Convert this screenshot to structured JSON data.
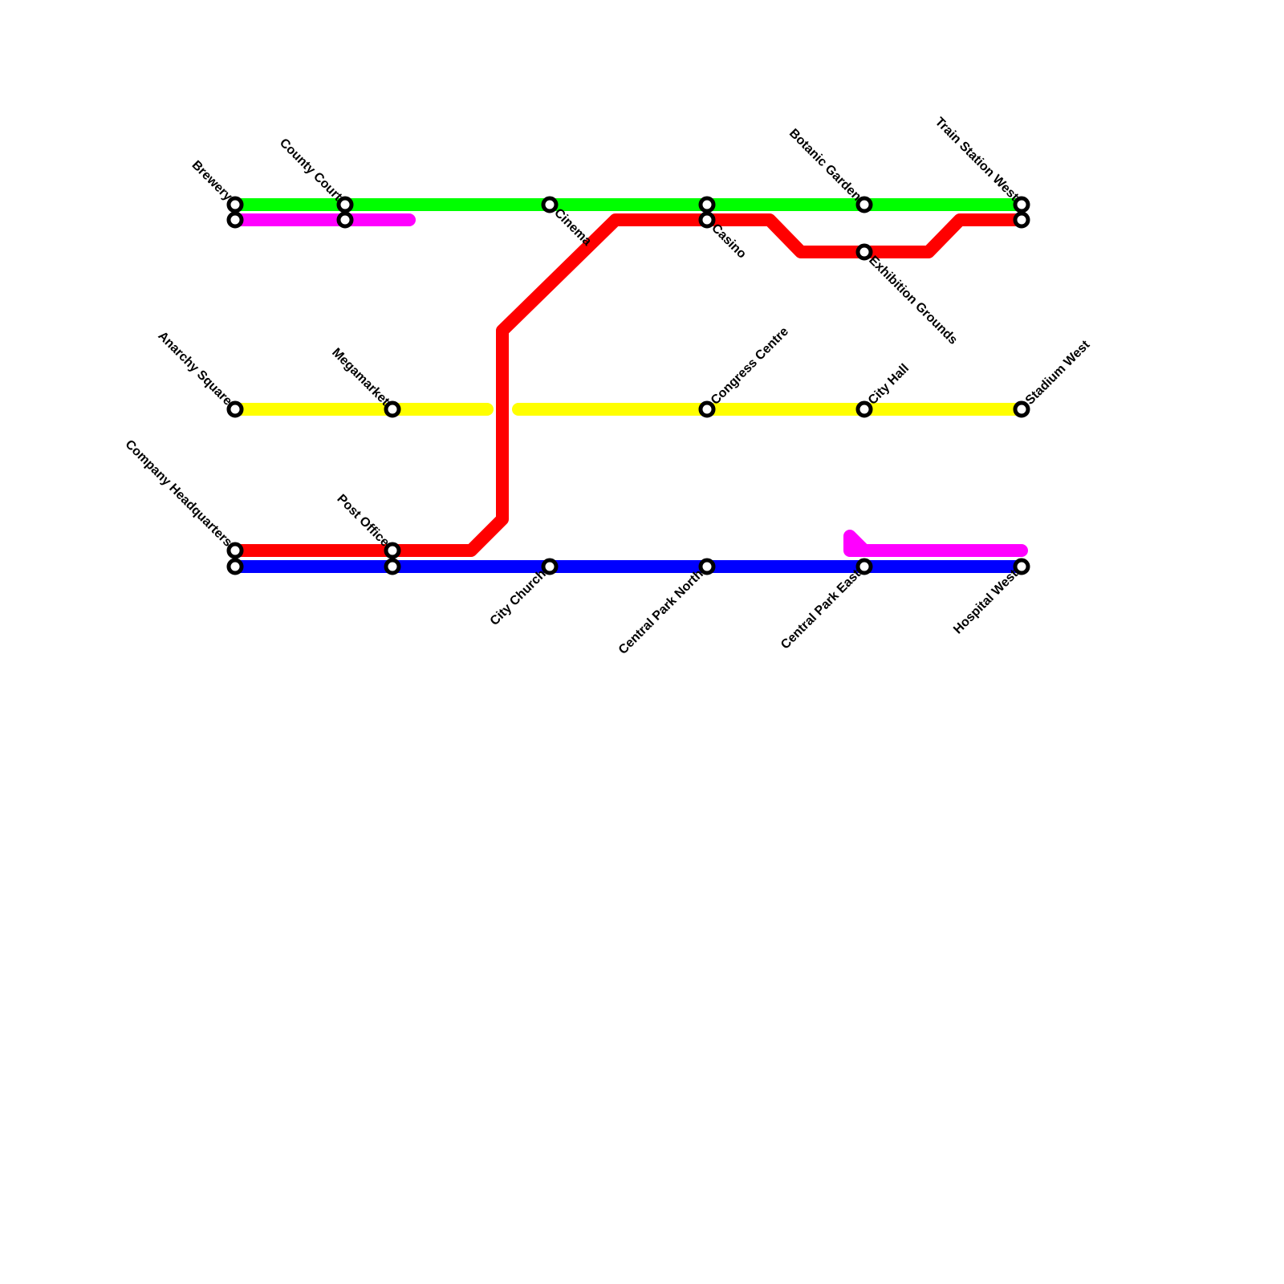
{
  "stations": [
    "Brewery",
    "County Court",
    "Cinema",
    "Casino",
    "Botanic Garden",
    "Train Station West",
    "Exhibition Grounds",
    "Anarchy Square",
    "Megamarket",
    "Congress Centre",
    "City Hall",
    "Stadium West",
    "Company Headquarters",
    "Post Office",
    "City Church",
    "Central Park North",
    "Central Park East",
    "Hospital West"
  ]
}
